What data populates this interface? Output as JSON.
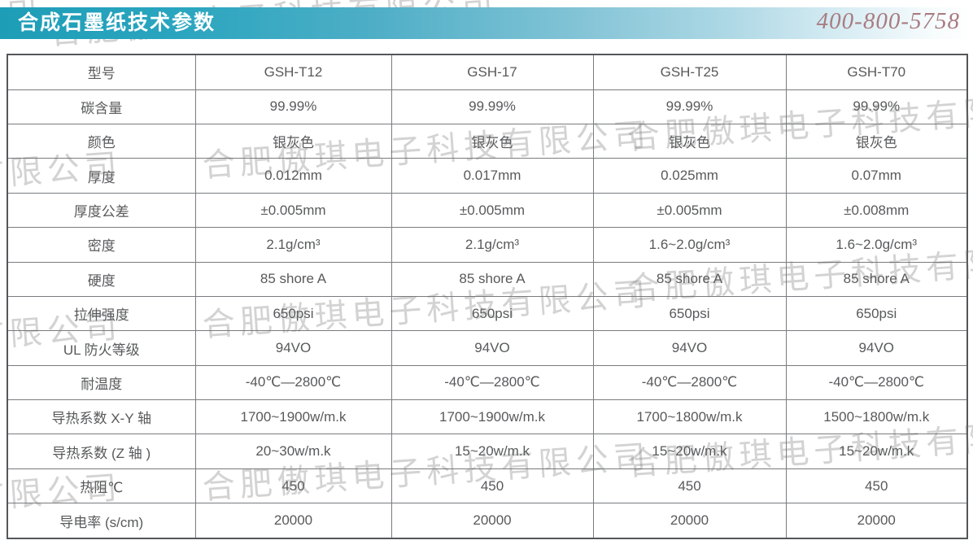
{
  "header": {
    "title": "合成石墨纸技术参数",
    "hotline": "400-800-5758"
  },
  "watermark": {
    "text": "合肥傲琪电子科技有限公司",
    "color": "#9b9b9b"
  },
  "colors": {
    "accent_teal": "#1f9eb8",
    "hotline_text": "#a87c81",
    "table_text": "#58595b",
    "table_border": "#797b7e",
    "title_text": "#ffffff"
  },
  "table": {
    "rows": [
      {
        "label": "型号",
        "values": [
          "GSH-T12",
          "GSH-17",
          "GSH-T25",
          "GSH-T70"
        ]
      },
      {
        "label": "碳含量",
        "values": [
          "99.99%",
          "99.99%",
          "99.99%",
          "99.99%"
        ]
      },
      {
        "label": "颜色",
        "values": [
          "银灰色",
          "银灰色",
          "银灰色",
          "银灰色"
        ]
      },
      {
        "label": "厚度",
        "values": [
          "0.012mm",
          "0.017mm",
          "0.025mm",
          "0.07mm"
        ]
      },
      {
        "label": "厚度公差",
        "values": [
          "±0.005mm",
          "±0.005mm",
          "±0.005mm",
          "±0.008mm"
        ]
      },
      {
        "label": "密度",
        "values": [
          "2.1g/cm³",
          "2.1g/cm³",
          "1.6~2.0g/cm³",
          "1.6~2.0g/cm³"
        ]
      },
      {
        "label": "硬度",
        "values": [
          "85 shore A",
          "85 shore A",
          "85 shore A",
          "85 shore A"
        ]
      },
      {
        "label": "拉伸强度",
        "values": [
          "650psi",
          "650psi",
          "650psi",
          "650psi"
        ]
      },
      {
        "label": "UL 防火等级",
        "values": [
          "94VO",
          "94VO",
          "94VO",
          "94VO"
        ]
      },
      {
        "label": "耐温度",
        "values": [
          "-40℃—2800℃",
          "-40℃—2800℃",
          "-40℃—2800℃",
          "-40℃—2800℃"
        ]
      },
      {
        "label": "导热系数 X-Y 轴",
        "values": [
          "1700~1900w/m.k",
          "1700~1900w/m.k",
          "1700~1800w/m.k",
          "1500~1800w/m.k"
        ]
      },
      {
        "label": "导热系数 (Z 轴 )",
        "values": [
          "20~30w/m.k",
          "15~20w/m.k",
          "15~20w/m.k",
          "15~20w/m.k"
        ]
      },
      {
        "label": "热阻℃",
        "values": [
          "450",
          "450",
          "450",
          "450"
        ]
      },
      {
        "label": "导电率 (s/cm)",
        "values": [
          "20000",
          "20000",
          "20000",
          "20000"
        ]
      }
    ]
  }
}
